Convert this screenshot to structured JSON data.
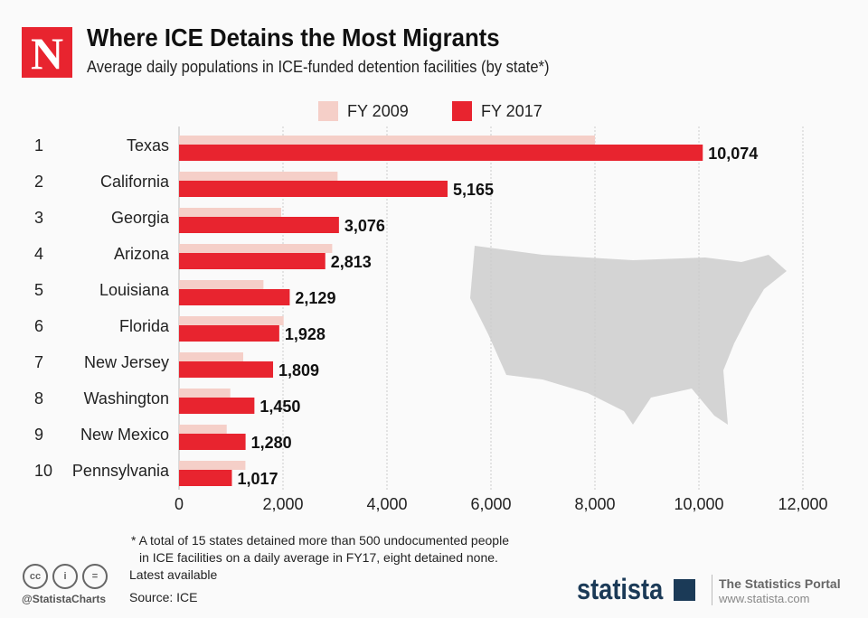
{
  "header": {
    "logo_letter": "N",
    "title": "Where ICE Detains the Most Migrants",
    "subtitle": "Average daily populations in ICE-funded detention facilities (by state*)"
  },
  "chart_data": {
    "type": "bar",
    "orientation": "horizontal",
    "title": "Where ICE Detains the Most Migrants",
    "subtitle": "Average daily populations in ICE-funded detention facilities (by state*)",
    "ranks": [
      "1",
      "2",
      "3",
      "4",
      "5",
      "6",
      "7",
      "8",
      "9",
      "10"
    ],
    "categories": [
      "Texas",
      "California",
      "Georgia",
      "Arizona",
      "Louisiana",
      "Florida",
      "New Jersey",
      "Washington",
      "New Mexico",
      "Pennsylvania"
    ],
    "series": [
      {
        "name": "FY 2009",
        "color": "#f5cfc8",
        "values": [
          8000,
          3050,
          1965,
          2946,
          1624,
          2012,
          1235,
          986,
          917,
          1277
        ]
      },
      {
        "name": "FY 2017",
        "color": "#e8242f",
        "values": [
          10074,
          5165,
          3076,
          2813,
          2129,
          1928,
          1809,
          1450,
          1280,
          1017
        ],
        "labels": [
          "10,074",
          "5,165",
          "3,076",
          "2,813",
          "2,129",
          "1,928",
          "1,809",
          "1,450",
          "1,280",
          "1,017"
        ]
      }
    ],
    "xlim": [
      0,
      12000
    ],
    "xticks": [
      "0",
      "2,000",
      "4,000",
      "6,000",
      "8,000",
      "10,000",
      "12,000"
    ],
    "grid": true,
    "legend": "top"
  },
  "footer": {
    "note_line1": "* A total of 15 states detained more than 500 undocumented people",
    "note_line2": "in ICE facilities on a daily average in FY17, eight detained none.",
    "latest": "Latest available",
    "source": "Source: ICE",
    "handle": "@StatistaCharts",
    "cc_icons": [
      "cc-icon",
      "by-icon",
      "nd-icon"
    ],
    "brand": "statista",
    "portal": "The Statistics Portal",
    "url": "www.statista.com"
  }
}
